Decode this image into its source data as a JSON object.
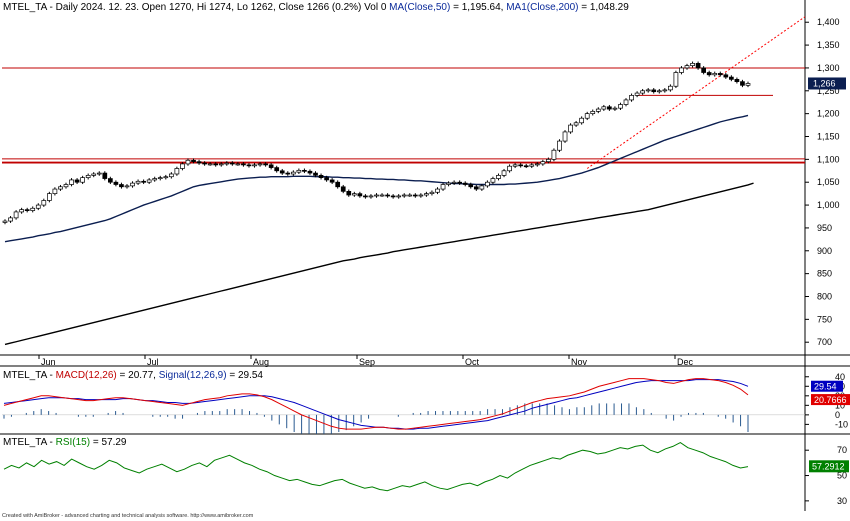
{
  "header": {
    "symbol": "MTEL_TA",
    "info": " - Daily 2024. 12. 23. Open 1270, Hi 1274, Lo 1262, Close 1266 (0.2%) Vol 0 ",
    "ma50_label": "MA(Close,50)",
    "ma50_value": " = 1,195.64, ",
    "ma200_label": "MA1(Close,200)",
    "ma200_value": " = 1,048.29"
  },
  "macd_header": {
    "symbol": "MTEL_TA",
    "dash": " - ",
    "macd_label": "MACD(12,26)",
    "macd_value": " = 20.77, ",
    "signal_label": "Signal(12,26,9)",
    "signal_value": " = 29.54"
  },
  "rsi_header": {
    "symbol": "MTEL_TA",
    "dash": " - ",
    "rsi_label": "RSI(15)",
    "rsi_value": " = 57.29"
  },
  "credit": "Created with AmiBroker - advanced charting and technical analysis software. http://www.amibroker.com",
  "colors": {
    "price_up": "#ffffff",
    "price_down": "#000000",
    "ma50": "#0b1e50",
    "ma200": "#000000",
    "hline": "#c00000",
    "trend": "#ff0000",
    "macd": "#e00000",
    "signal": "#0000c0",
    "hist": "#2a5a90",
    "rsi": "#008000",
    "label_blue": "#0b1e50"
  },
  "chart_data": [
    {
      "type": "candlestick",
      "title": "MTEL_TA - Daily",
      "x_labels": [
        "Jun",
        "Jul",
        "Aug",
        "Sep",
        "Oct",
        "Nov",
        "Dec"
      ],
      "y_ticks": [
        700,
        750,
        800,
        850,
        900,
        950,
        1000,
        1050,
        1100,
        1150,
        1200,
        1250,
        1300,
        1350,
        1400
      ],
      "y_tick_labels": [
        "700",
        "750",
        "800",
        "850",
        "900",
        "950",
        "1,000",
        "1,050",
        "1,100",
        "1,150",
        "1,200",
        "1,250",
        "1,300",
        "1,350",
        "1,400"
      ],
      "ylim": [
        672,
        1418
      ],
      "last_close_label": "1,266",
      "close": [
        965,
        972,
        985,
        990,
        988,
        993,
        1000,
        1010,
        1025,
        1035,
        1040,
        1045,
        1055,
        1050,
        1060,
        1065,
        1068,
        1070,
        1058,
        1050,
        1045,
        1040,
        1042,
        1048,
        1052,
        1050,
        1055,
        1058,
        1060,
        1062,
        1068,
        1080,
        1090,
        1098,
        1095,
        1092,
        1090,
        1090,
        1088,
        1090,
        1092,
        1090,
        1090,
        1088,
        1086,
        1088,
        1090,
        1088,
        1082,
        1075,
        1070,
        1068,
        1072,
        1076,
        1074,
        1070,
        1065,
        1060,
        1055,
        1050,
        1040,
        1030,
        1022,
        1025,
        1020,
        1018,
        1020,
        1022,
        1022,
        1020,
        1018,
        1020,
        1022,
        1022,
        1020,
        1022,
        1025,
        1028,
        1035,
        1045,
        1048,
        1050,
        1048,
        1045,
        1040,
        1035,
        1042,
        1050,
        1058,
        1065,
        1075,
        1085,
        1088,
        1086,
        1085,
        1088,
        1090,
        1095,
        1100,
        1120,
        1140,
        1160,
        1175,
        1180,
        1190,
        1200,
        1205,
        1210,
        1215,
        1210,
        1212,
        1220,
        1230,
        1240,
        1245,
        1250,
        1252,
        1248,
        1250,
        1252,
        1260,
        1290,
        1300,
        1305,
        1310,
        1300,
        1290,
        1285,
        1288,
        1285,
        1280,
        1275,
        1270,
        1262,
        1266
      ],
      "ma50": [
        920,
        922,
        924,
        926,
        928,
        930,
        933,
        935,
        937,
        940,
        942,
        945,
        948,
        951,
        954,
        957,
        960,
        963,
        966,
        970,
        975,
        980,
        985,
        990,
        995,
        1000,
        1004,
        1008,
        1012,
        1016,
        1020,
        1025,
        1030,
        1035,
        1040,
        1043,
        1045,
        1047,
        1049,
        1051,
        1053,
        1055,
        1057,
        1058,
        1059,
        1060,
        1061,
        1061,
        1062,
        1062,
        1062,
        1062,
        1063,
        1063,
        1063,
        1063,
        1062,
        1062,
        1062,
        1061,
        1061,
        1060,
        1060,
        1059,
        1059,
        1058,
        1058,
        1057,
        1057,
        1056,
        1056,
        1055,
        1055,
        1054,
        1053,
        1053,
        1052,
        1051,
        1050,
        1049,
        1048,
        1047,
        1047,
        1046,
        1046,
        1045,
        1045,
        1045,
        1045,
        1045,
        1045,
        1046,
        1046,
        1047,
        1048,
        1049,
        1050,
        1052,
        1054,
        1056,
        1058,
        1061,
        1064,
        1067,
        1070,
        1074,
        1078,
        1082,
        1087,
        1092,
        1097,
        1102,
        1107,
        1112,
        1117,
        1122,
        1127,
        1132,
        1137,
        1142,
        1146,
        1150,
        1154,
        1158,
        1162,
        1166,
        1170,
        1174,
        1178,
        1182,
        1185,
        1188,
        1191,
        1193,
        1196
      ],
      "ma200": [
        695,
        698,
        701,
        704,
        707,
        710,
        713,
        716,
        719,
        722,
        725,
        728,
        731,
        734,
        737,
        740,
        743,
        746,
        749,
        752,
        755,
        758,
        761,
        764,
        767,
        770,
        773,
        776,
        779,
        782,
        785,
        788,
        791,
        794,
        797,
        800,
        803,
        806,
        809,
        812,
        815,
        818,
        821,
        824,
        827,
        830,
        833,
        836,
        839,
        842,
        845,
        848,
        851,
        854,
        857,
        860,
        863,
        866,
        869,
        872,
        875,
        878,
        880,
        882,
        885,
        887,
        889,
        891,
        893,
        895,
        898,
        900,
        902,
        904,
        906,
        908,
        910,
        912,
        914,
        916,
        918,
        920,
        922,
        924,
        926,
        928,
        930,
        932,
        934,
        936,
        938,
        940,
        942,
        944,
        946,
        948,
        950,
        952,
        954,
        956,
        958,
        960,
        962,
        964,
        966,
        968,
        970,
        972,
        974,
        976,
        978,
        980,
        982,
        984,
        986,
        988,
        990,
        993,
        996,
        999,
        1002,
        1005,
        1008,
        1011,
        1014,
        1017,
        1020,
        1023,
        1026,
        1029,
        1032,
        1035,
        1038,
        1041,
        1044,
        1048
      ],
      "horizontal_lines": [
        1300,
        1101,
        1094,
        1092,
        1240
      ],
      "trendline": {
        "from": {
          "x_index": 105,
          "y": 1080
        },
        "to": {
          "x_index": 150,
          "y": 1412
        }
      }
    },
    {
      "type": "line",
      "title": "MACD",
      "series": [
        {
          "name": "MACD(12,26)",
          "values": [
            10,
            12,
            14,
            16,
            18,
            20,
            20,
            19,
            18,
            17,
            16,
            15,
            15,
            16,
            17,
            18,
            18,
            17,
            16,
            15,
            14,
            13,
            12,
            11,
            10,
            12,
            14,
            16,
            17,
            18,
            20,
            21,
            22,
            22,
            21,
            19,
            16,
            12,
            8,
            4,
            0,
            -3,
            -6,
            -9,
            -12,
            -14,
            -15,
            -15,
            -15,
            -14,
            -13,
            -13,
            -14,
            -15,
            -15,
            -14,
            -13,
            -12,
            -11,
            -10,
            -9,
            -8,
            -7,
            -6,
            -5,
            -3,
            -1,
            1,
            4,
            7,
            10,
            13,
            15,
            17,
            18,
            19,
            20,
            22,
            24,
            27,
            30,
            32,
            34,
            36,
            38,
            38,
            38,
            37,
            36,
            34,
            33,
            35,
            37,
            38,
            38,
            37,
            36,
            34,
            31,
            27,
            21
          ]
        },
        {
          "name": "Signal(12,26,9)",
          "values": [
            12,
            13,
            14,
            15,
            16,
            17,
            18,
            18,
            18,
            17,
            17,
            16,
            16,
            16,
            16,
            16,
            17,
            17,
            16,
            15,
            15,
            14,
            13,
            13,
            12,
            12,
            13,
            14,
            15,
            16,
            17,
            18,
            19,
            20,
            20,
            20,
            19,
            17,
            15,
            13,
            10,
            7,
            4,
            1,
            -2,
            -5,
            -7,
            -9,
            -11,
            -12,
            -13,
            -13,
            -14,
            -14,
            -15,
            -15,
            -14,
            -14,
            -13,
            -12,
            -11,
            -10,
            -9,
            -8,
            -7,
            -6,
            -4,
            -2,
            0,
            2,
            4,
            7,
            9,
            11,
            13,
            15,
            17,
            18,
            20,
            22,
            24,
            26,
            28,
            30,
            32,
            34,
            35,
            36,
            36,
            36,
            36,
            36,
            36,
            37,
            37,
            37,
            37,
            36,
            35,
            33,
            30
          ]
        }
      ],
      "y_ticks": [
        -10,
        0,
        10,
        20,
        30,
        40
      ],
      "ylim": [
        -18,
        45
      ],
      "last_macd_label": "20.7666",
      "last_signal_label": "29.54"
    },
    {
      "type": "line",
      "title": "RSI",
      "series": [
        {
          "name": "RSI(15)",
          "values": [
            55,
            58,
            56,
            60,
            57,
            62,
            59,
            61,
            58,
            63,
            60,
            57,
            55,
            58,
            62,
            60,
            56,
            54,
            52,
            55,
            57,
            59,
            56,
            53,
            55,
            58,
            60,
            57,
            62,
            64,
            66,
            63,
            60,
            58,
            55,
            53,
            50,
            48,
            46,
            47,
            45,
            43,
            42,
            44,
            46,
            47,
            44,
            42,
            40,
            41,
            39,
            38,
            40,
            42,
            41,
            43,
            45,
            42,
            40,
            39,
            41,
            43,
            44,
            42,
            45,
            47,
            50,
            48,
            52,
            55,
            58,
            60,
            62,
            64,
            63,
            66,
            68,
            70,
            69,
            67,
            68,
            70,
            72,
            71,
            73,
            74,
            70,
            68,
            71,
            73,
            76,
            72,
            70,
            68,
            65,
            63,
            61,
            58,
            56,
            57
          ]
        }
      ],
      "y_ticks": [
        30,
        50,
        70
      ],
      "ylim": [
        22,
        82
      ],
      "last_label": "57.2912"
    }
  ]
}
